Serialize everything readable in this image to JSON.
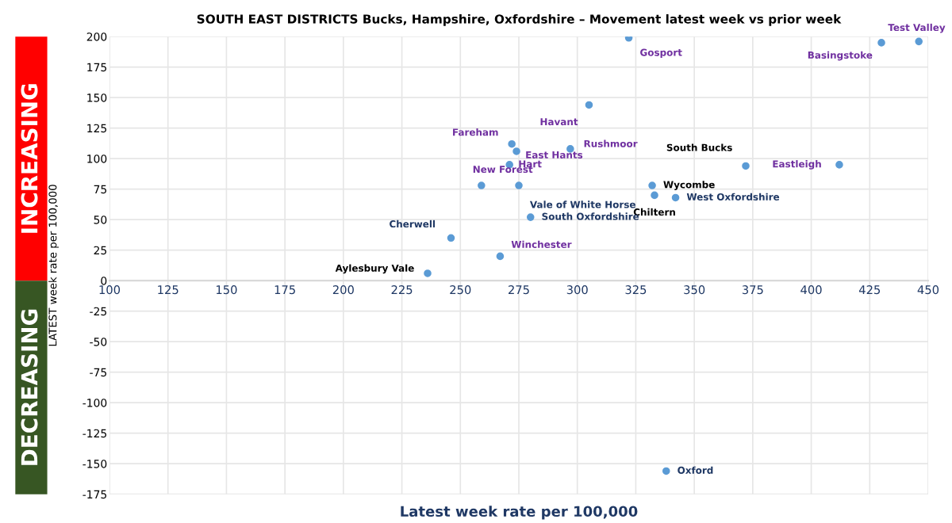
{
  "chart_data": {
    "type": "scatter",
    "title": "SOUTH EAST DISTRICTS Bucks, Hampshire, Oxfordshire – Movement latest week vs prior week",
    "xlabel": "Latest week rate per 100,000",
    "ylabel": "LATEST week rate per 100,000",
    "series": [
      {
        "color": "#5b9bd5",
        "x": [
          236,
          372,
          332,
          333
        ],
        "values": [
          6,
          94,
          78,
          70
        ],
        "value_labels": [
          "Aylesbury Vale",
          "South Bucks",
          "Wycombe",
          "Chiltern"
        ]
      },
      {
        "color": "#5b9bd5",
        "x": [
          322,
          446,
          430,
          305,
          272,
          274,
          297,
          412,
          271,
          259,
          267
        ],
        "values": [
          199,
          196,
          195,
          144,
          112,
          106,
          108,
          95,
          95,
          78,
          20
        ],
        "value_labels": [
          "Gosport",
          "Test Valley",
          "Basingstoke",
          "Havant",
          "Fareham",
          "East Hants",
          "Rushmoor",
          "Eastleigh",
          "Hart",
          "New Forest",
          "Winchester"
        ]
      },
      {
        "color": "#5b9bd5",
        "x": [
          275,
          280,
          246,
          342,
          338
        ],
        "values": [
          78,
          52,
          35,
          68,
          -156
        ],
        "value_labels": [
          "Vale of White Horse",
          "South Oxfordshire",
          "Cherwell",
          "West Oxfordshire",
          "Oxford"
        ]
      }
    ],
    "xlim": [
      100,
      450
    ],
    "xticks": [
      100,
      125,
      150,
      175,
      200,
      225,
      250,
      275,
      300,
      325,
      350,
      375,
      400,
      425,
      450
    ],
    "ylim": [
      -175,
      200
    ],
    "yticks": [
      -175,
      -150,
      -125,
      -100,
      -75,
      -50,
      -25,
      0,
      25,
      50,
      75,
      100,
      125,
      150,
      175,
      200
    ],
    "annotations": [
      "INCREASING",
      "DECREASING"
    ],
    "grid": true,
    "marker": "circle"
  }
}
